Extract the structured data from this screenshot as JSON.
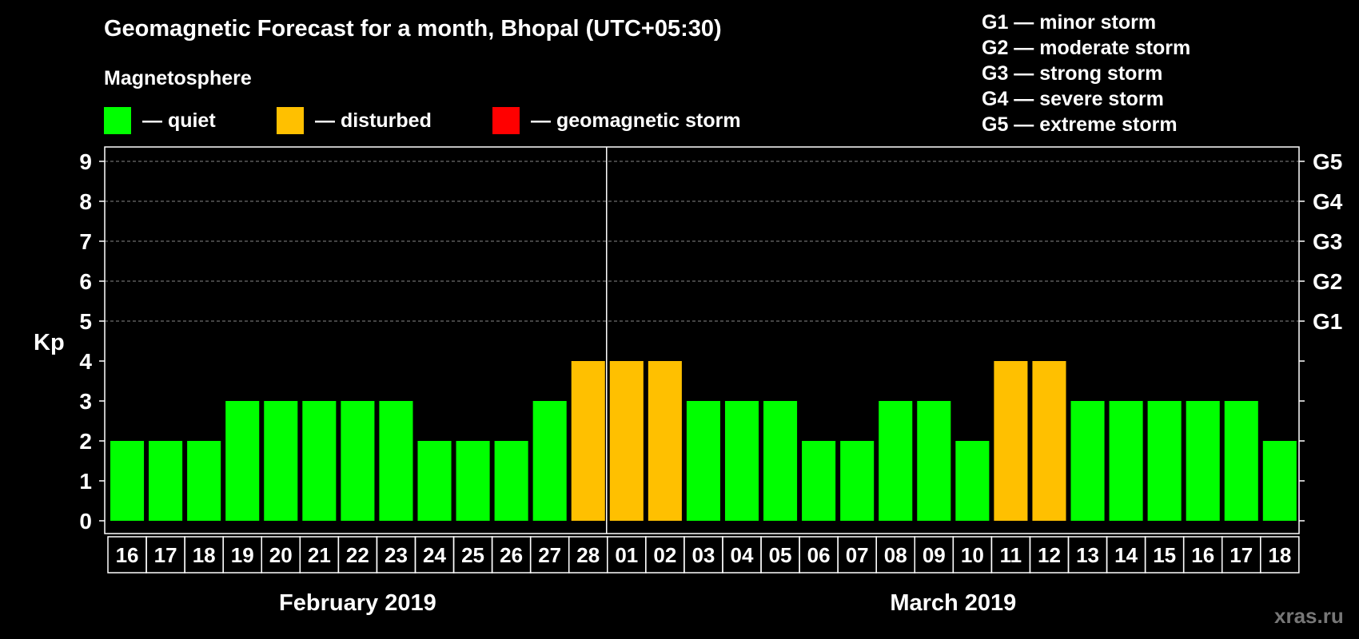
{
  "header": {
    "title": "Geomagnetic Forecast for a month, Bhopal (UTC+05:30)",
    "subtitle": "Magnetosphere"
  },
  "legend": {
    "items": [
      {
        "label": "— quiet",
        "color": "#00ff00"
      },
      {
        "label": "— disturbed",
        "color": "#ffc000"
      },
      {
        "label": "— geomagnetic storm",
        "color": "#ff0000"
      }
    ]
  },
  "storm_legend": [
    "G1 — minor storm",
    "G2 — moderate storm",
    "G3 — strong storm",
    "G4 — severe storm",
    "G5 — extreme storm"
  ],
  "watermark": "xras.ru",
  "chart_data": {
    "type": "bar",
    "ylabel": "Kp",
    "ylim": [
      0,
      9
    ],
    "yticks": [
      0,
      1,
      2,
      3,
      4,
      5,
      6,
      7,
      8,
      9
    ],
    "right_ticks": [
      {
        "value": 5,
        "label": "G1"
      },
      {
        "value": 6,
        "label": "G2"
      },
      {
        "value": 7,
        "label": "G3"
      },
      {
        "value": 8,
        "label": "G4"
      },
      {
        "value": 9,
        "label": "G5"
      }
    ],
    "categories": [
      "16",
      "17",
      "18",
      "19",
      "20",
      "21",
      "22",
      "23",
      "24",
      "25",
      "26",
      "27",
      "28",
      "01",
      "02",
      "03",
      "04",
      "05",
      "06",
      "07",
      "08",
      "09",
      "10",
      "11",
      "12",
      "13",
      "14",
      "15",
      "16",
      "17",
      "18"
    ],
    "values": [
      2,
      2,
      2,
      3,
      3,
      3,
      3,
      3,
      2,
      2,
      2,
      3,
      4,
      4,
      4,
      3,
      3,
      3,
      2,
      2,
      3,
      3,
      2,
      4,
      4,
      3,
      3,
      3,
      3,
      3,
      2
    ],
    "months": [
      {
        "label": "February 2019",
        "start": 0,
        "count": 13
      },
      {
        "label": "March 2019",
        "start": 13,
        "count": 18
      }
    ],
    "colors": {
      "quiet": "#00ff00",
      "disturbed": "#ffc000",
      "storm": "#ff0000"
    },
    "grid": true,
    "legend_position": "top"
  }
}
